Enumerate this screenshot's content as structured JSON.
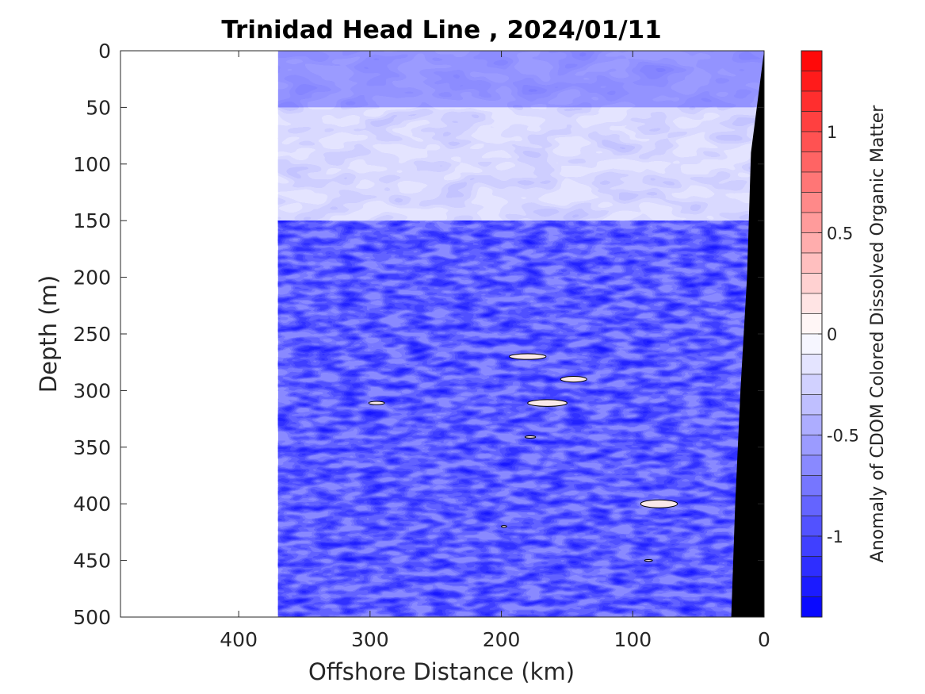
{
  "chart_data": {
    "type": "heatmap",
    "title": "Trinidad Head Line , 2024/01/11",
    "xlabel": "Offshore Distance (km)",
    "ylabel": "Depth (m)",
    "colorbar_label": "Anomaly of CDOM Colored Dissolved Organic Matter",
    "xlim": [
      490,
      0
    ],
    "ylim": [
      0,
      500
    ],
    "x_reversed": true,
    "y_reversed": true,
    "x_ticks": [
      400,
      300,
      200,
      100,
      0
    ],
    "x_tick_labels": [
      "400",
      "300",
      "200",
      "100",
      "0"
    ],
    "y_ticks": [
      0,
      50,
      100,
      150,
      200,
      250,
      300,
      350,
      400,
      450,
      500
    ],
    "y_tick_labels": [
      "0",
      "50",
      "100",
      "150",
      "200",
      "250",
      "300",
      "350",
      "400",
      "450",
      "500"
    ],
    "colorbar": {
      "range": [
        -1.4,
        1.4
      ],
      "levels": 28,
      "ticks": [
        1,
        0.5,
        0,
        -0.5,
        -1
      ],
      "tick_labels": [
        "1",
        "0.5",
        "0",
        "-0.5",
        "-1"
      ],
      "colormap": "blue-white-red",
      "low_color": "#0000ff",
      "mid_color": "#ffffff",
      "high_color": "#ff0000"
    },
    "data_extent_km": [
      0,
      370
    ],
    "bathymetry_color": "#000000",
    "seafloor_profile": [
      {
        "x": 0,
        "depth": 0
      },
      {
        "x": 10,
        "depth": 90
      },
      {
        "x": 13,
        "depth": 200
      },
      {
        "x": 18,
        "depth": 300
      },
      {
        "x": 22,
        "depth": 400
      },
      {
        "x": 25,
        "depth": 500
      }
    ],
    "zero_contours": [
      {
        "x": 180,
        "depth": 270,
        "rx": 14,
        "rd": 2.5
      },
      {
        "x": 145,
        "depth": 290,
        "rx": 10,
        "rd": 2.5
      },
      {
        "x": 165,
        "depth": 311,
        "rx": 15,
        "rd": 3
      },
      {
        "x": 295,
        "depth": 311,
        "rx": 6,
        "rd": 1.5
      },
      {
        "x": 178,
        "depth": 341,
        "rx": 4,
        "rd": 1
      },
      {
        "x": 80,
        "depth": 400,
        "rx": 14,
        "rd": 3.5
      },
      {
        "x": 198,
        "depth": 420,
        "rx": 2,
        "rd": 0.8
      },
      {
        "x": 88,
        "depth": 450,
        "rx": 3,
        "rd": 0.8
      }
    ],
    "upper_layer_anomaly_bands": [
      {
        "depth_top": 0,
        "depth_bottom": 50,
        "value": -0.6
      },
      {
        "depth_top": 50,
        "depth_bottom": 150,
        "value": -0.15
      },
      {
        "depth_top": 150,
        "depth_bottom": 500,
        "value": -0.7
      }
    ]
  }
}
